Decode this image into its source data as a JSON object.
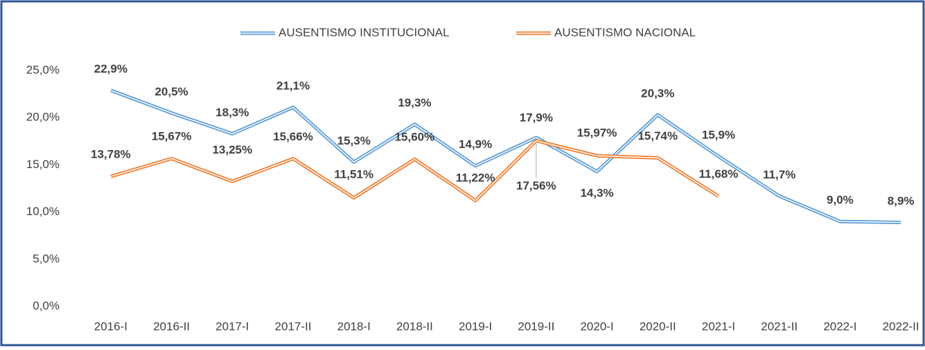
{
  "chart_data": {
    "type": "line",
    "categories": [
      "2016-I",
      "2016-II",
      "2017-I",
      "2017-II",
      "2018-I",
      "2018-II",
      "2019-I",
      "2019-II",
      "2020-I",
      "2020-II",
      "2021-I",
      "2021-II",
      "2022-I",
      "2022-II"
    ],
    "series": [
      {
        "name": "AUSENTISMO INSTITUCIONAL",
        "color": "#5b9bd5",
        "values": [
          22.9,
          20.5,
          18.3,
          21.1,
          15.3,
          19.3,
          14.9,
          17.9,
          14.3,
          20.3,
          15.9,
          11.7,
          9.0,
          8.9
        ],
        "value_labels": [
          "22,9%",
          "20,5%",
          "18,3%",
          "21,1%",
          "15,3%",
          "19,3%",
          "14,9%",
          "17,9%",
          "14,3%",
          "20,3%",
          "15,9%",
          "11,7%",
          "9,0%",
          "8,9%"
        ]
      },
      {
        "name": "AUSENTISMO NACIONAL",
        "color": "#ed7d31",
        "values": [
          13.78,
          15.67,
          13.25,
          15.66,
          11.51,
          15.6,
          11.22,
          17.56,
          15.97,
          15.74,
          11.68,
          null,
          null,
          null
        ],
        "value_labels": [
          "13,78%",
          "15,67%",
          "13,25%",
          "15,66%",
          "11,51%",
          "15,60%",
          "11,22%",
          "17,56%",
          "15,97%",
          "15,74%",
          "11,68%",
          null,
          null,
          null
        ]
      }
    ],
    "ylim": [
      0,
      25
    ],
    "yticks": [
      {
        "value": 0,
        "label": "0,0%"
      },
      {
        "value": 5,
        "label": "5,0%"
      },
      {
        "value": 10,
        "label": "10,0%"
      },
      {
        "value": 15,
        "label": "15,0%"
      },
      {
        "value": 20,
        "label": "20,0%"
      },
      {
        "value": 25,
        "label": "25,0%"
      }
    ],
    "legend": "top"
  }
}
